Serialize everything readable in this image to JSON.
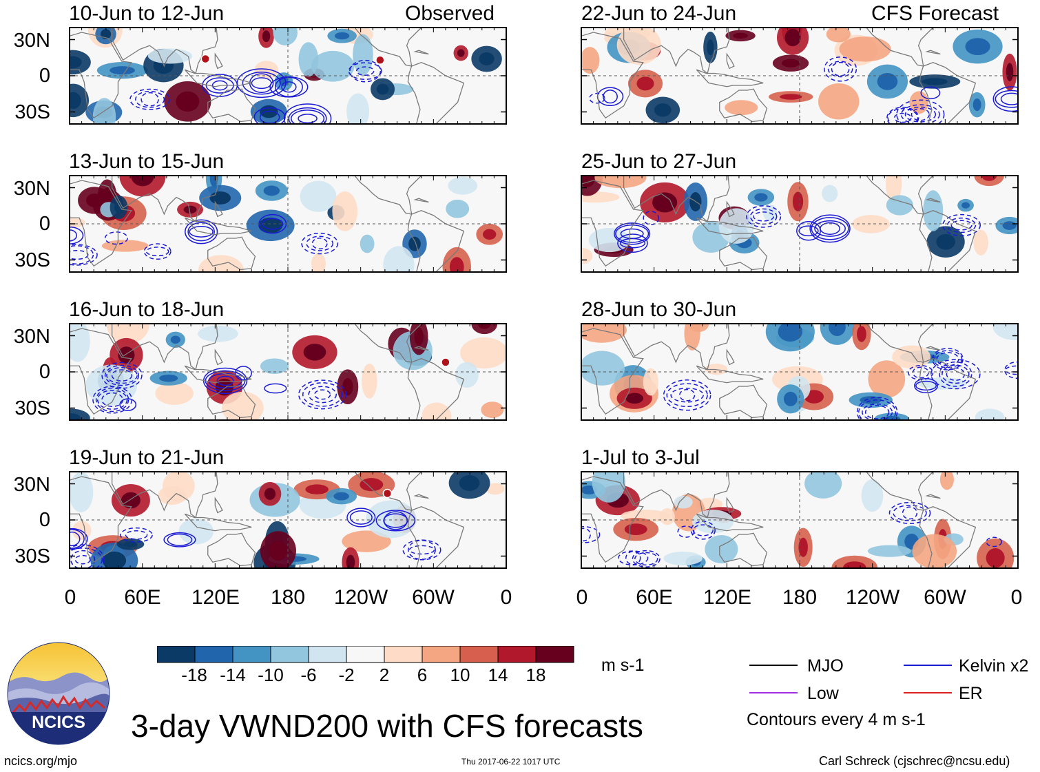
{
  "title": "3-day VWND200 with CFS forecasts",
  "header": {
    "observed_label": "Observed",
    "forecast_label": "CFS Forecast"
  },
  "panels": [
    {
      "period": "10-Jun to 12-Jun",
      "column": "observed",
      "markers": [
        {
          "lon": 112,
          "lat": 14
        },
        {
          "lon": 256,
          "lat": 13
        }
      ]
    },
    {
      "period": "13-Jun to 15-Jun",
      "column": "observed",
      "markers": []
    },
    {
      "period": "16-Jun to 18-Jun",
      "column": "observed",
      "markers": [
        {
          "lon": 310,
          "lat": 8
        }
      ]
    },
    {
      "period": "19-Jun to 21-Jun",
      "column": "observed",
      "markers": [
        {
          "lon": 262,
          "lat": 22
        }
      ]
    },
    {
      "period": "22-Jun to 24-Jun",
      "column": "forecast",
      "markers": []
    },
    {
      "period": "25-Jun to 27-Jun",
      "column": "forecast",
      "markers": []
    },
    {
      "period": "28-Jun to 30-Jun",
      "column": "forecast",
      "markers": []
    },
    {
      "period": "1-Jul to 3-Jul",
      "column": "forecast",
      "markers": []
    }
  ],
  "y_axis": {
    "ticks": [
      "30N",
      "0",
      "30S"
    ],
    "range_lat": [
      40,
      -40
    ]
  },
  "x_axis": {
    "ticks": [
      "0",
      "60E",
      "120E",
      "180",
      "120W",
      "60W",
      "0"
    ],
    "range_lon": [
      0,
      360
    ]
  },
  "colorbar": {
    "labels": [
      "-18",
      "-14",
      "-10",
      "-6",
      "-2",
      "2",
      "6",
      "10",
      "14",
      "18"
    ],
    "colors": [
      "#0b3a66",
      "#2166ac",
      "#4393c3",
      "#92c5de",
      "#d1e5f0",
      "#f7f7f7",
      "#fddbc7",
      "#f4a582",
      "#d6604d",
      "#b2182b",
      "#67001f"
    ],
    "units": "m s-1"
  },
  "legend": {
    "items": [
      {
        "label": "MJO",
        "color": "#000000"
      },
      {
        "label": "Kelvin x2",
        "color": "#1a1ad6"
      },
      {
        "label": "Low",
        "color": "#a030e0"
      },
      {
        "label": "ER",
        "color": "#e02020"
      }
    ],
    "contour_note": "Contours every 4 m s-1"
  },
  "logo": {
    "text": "NCICS"
  },
  "footer": {
    "url": "ncics.org/mjo",
    "timestamp": "Thu 2017-06-22 1017 UTC",
    "credit": "Carl Schreck (cjschrec@ncsu.edu)"
  }
}
